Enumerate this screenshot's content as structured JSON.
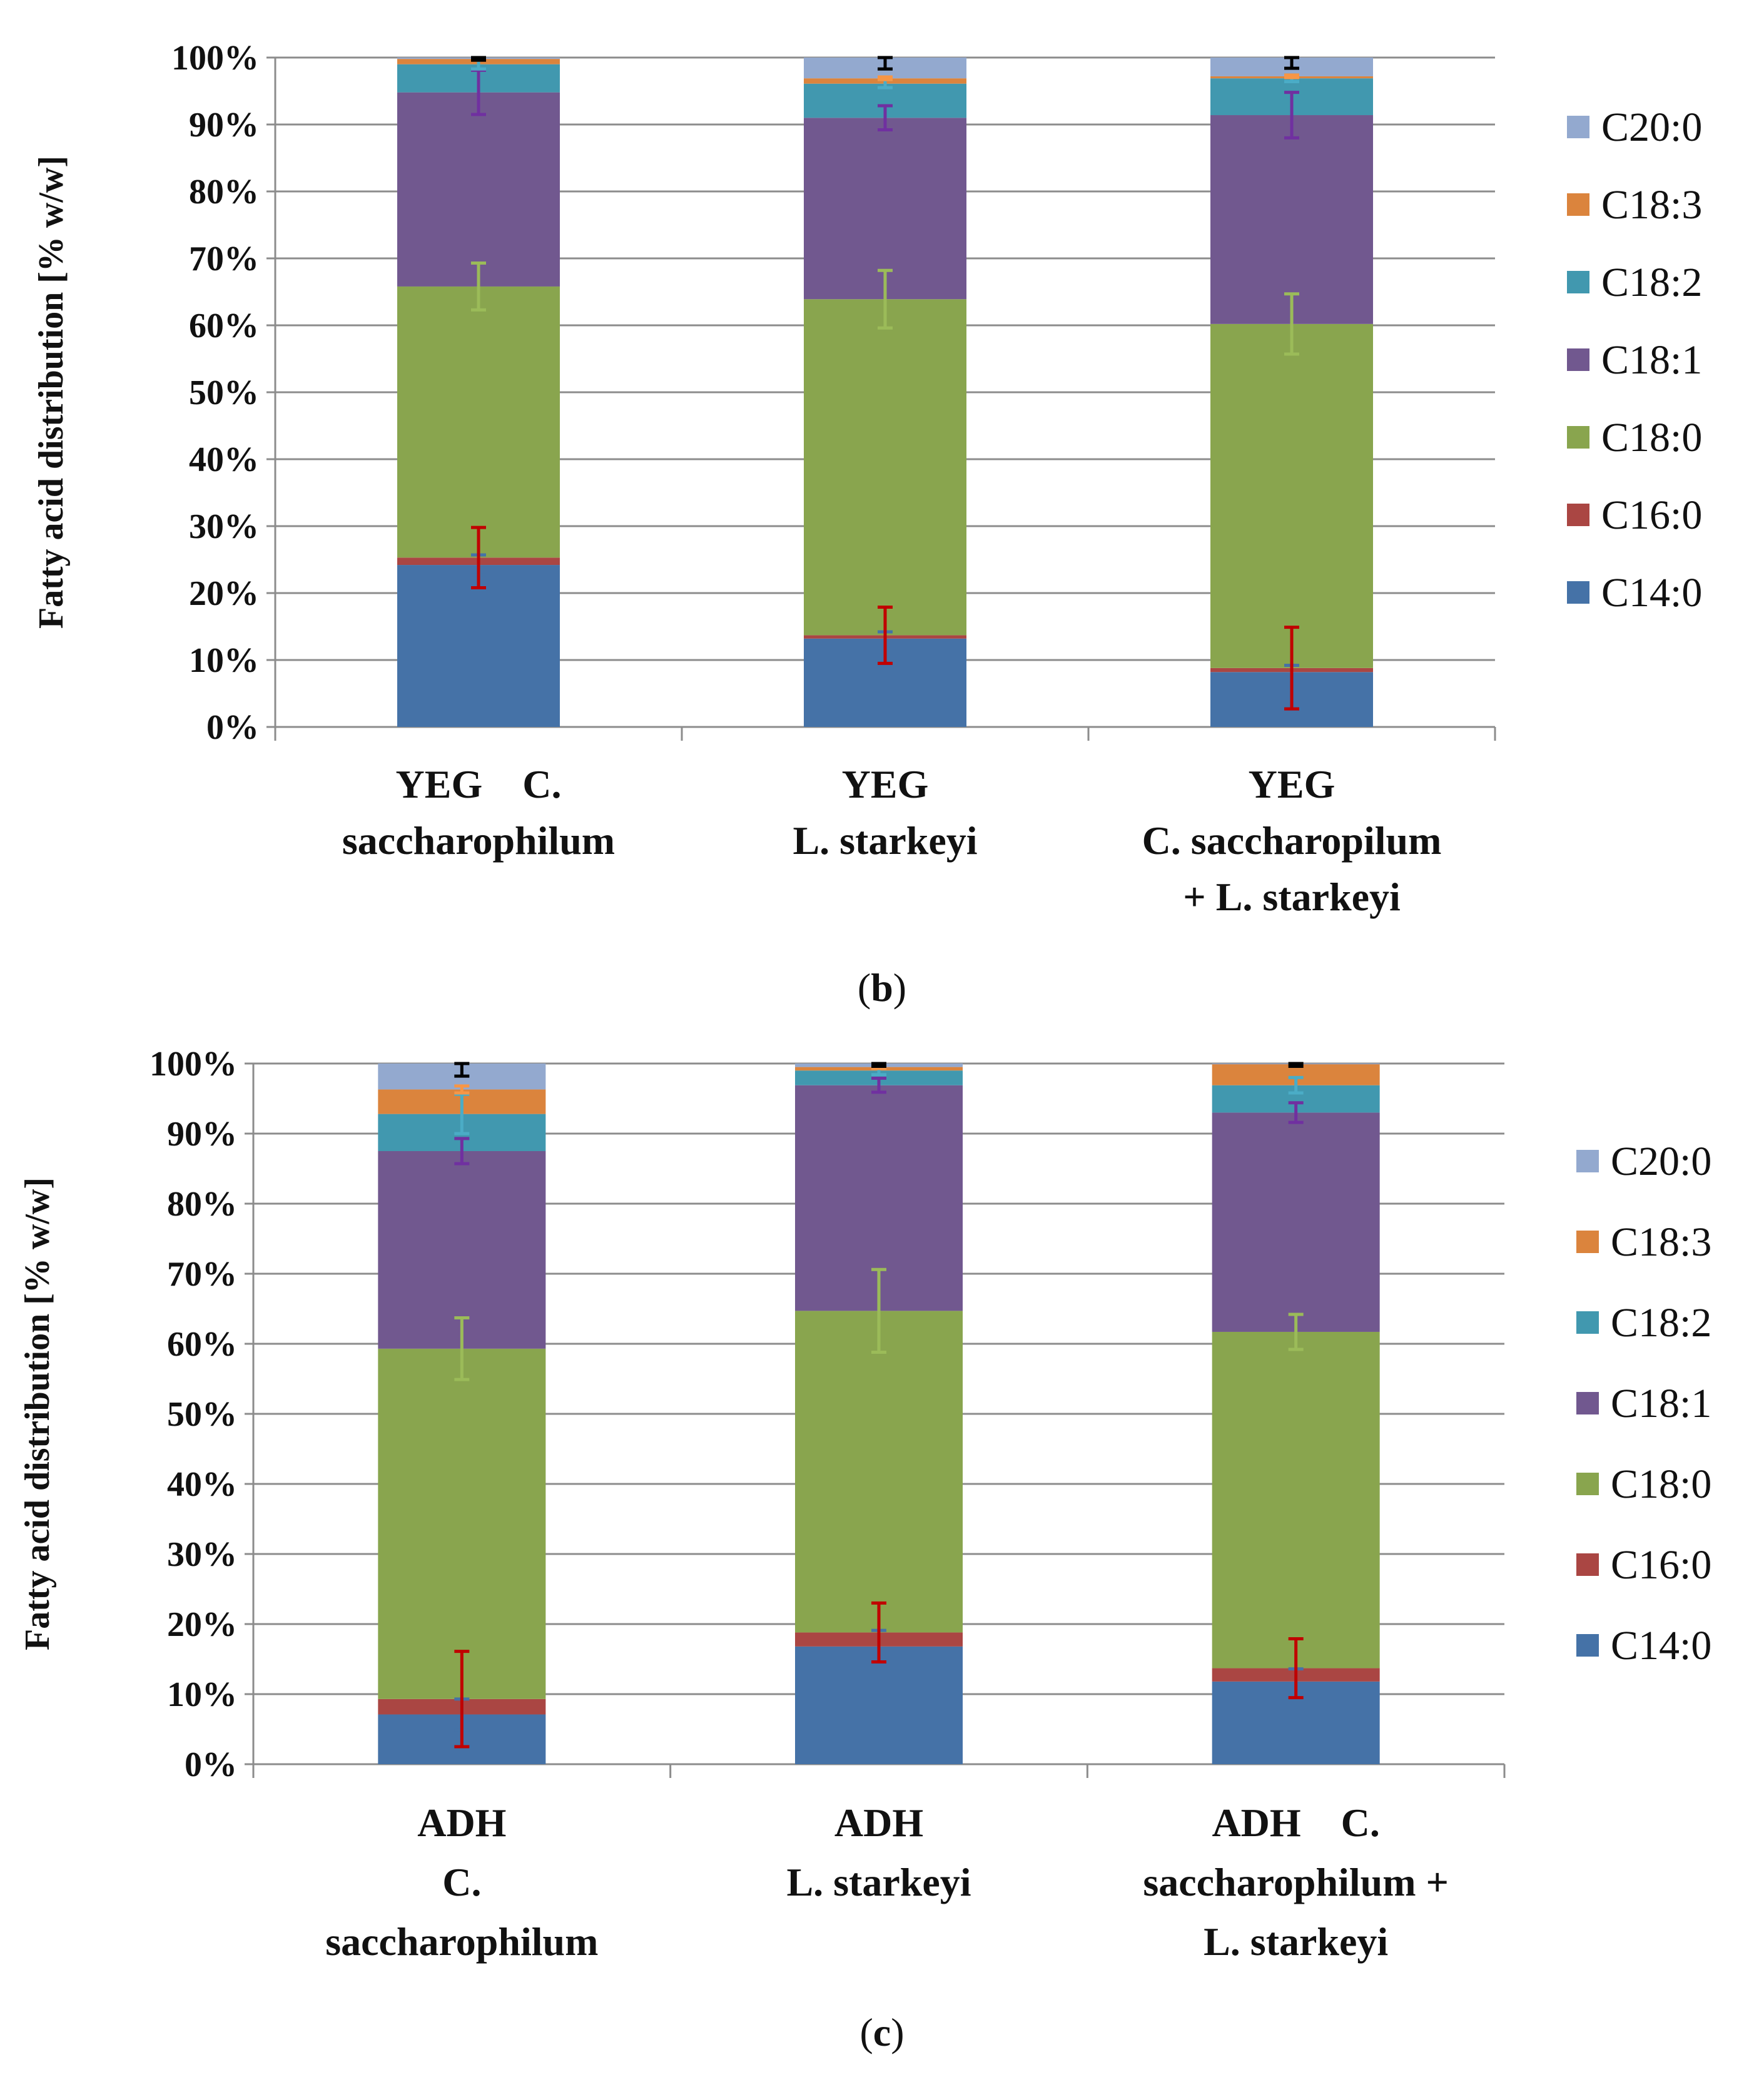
{
  "chart_data": [
    {
      "type": "bar",
      "stacked": true,
      "panel": "b",
      "ylabel": "Fatty acid distribution [% w/w]",
      "ylim": [
        0,
        100
      ],
      "yticks": [
        "0%",
        "10%",
        "20%",
        "30%",
        "40%",
        "50%",
        "60%",
        "70%",
        "80%",
        "90%",
        "100%"
      ],
      "grid": true,
      "legend_position": "right",
      "categories": [
        [
          "YEG    C.",
          "saccharophilum"
        ],
        [
          "YEG",
          "L. starkeyi"
        ],
        [
          "YEG",
          "C. saccharopilum",
          "+ L. starkeyi"
        ]
      ],
      "series": [
        {
          "name": "C14:0",
          "color": "#4572A7",
          "values": [
            24.2,
            13.2,
            8.2
          ],
          "errors": [
            1.5,
            1.0,
            1.0
          ],
          "err_color": "#4572A7"
        },
        {
          "name": "C16:0",
          "color": "#AA4643",
          "values": [
            1.1,
            0.5,
            0.6
          ],
          "errors": [
            4.5,
            4.2,
            6.1
          ],
          "err_color": "#C00000"
        },
        {
          "name": "C18:0",
          "color": "#89A54E",
          "values": [
            40.5,
            50.2,
            51.4
          ],
          "errors": [
            3.5,
            4.3,
            4.5
          ],
          "err_color": "#9BBB59"
        },
        {
          "name": "C18:1",
          "color": "#71588F",
          "values": [
            29.0,
            27.1,
            31.2
          ],
          "errors": [
            3.3,
            1.8,
            3.4
          ],
          "err_color": "#7030A0"
        },
        {
          "name": "C18:2",
          "color": "#4198AF",
          "values": [
            4.2,
            5.1,
            5.5
          ],
          "errors": [
            0.7,
            0.6,
            0.5
          ],
          "err_color": "#4BACC6"
        },
        {
          "name": "C18:3",
          "color": "#DB843D",
          "values": [
            0.8,
            0.8,
            0.3
          ],
          "errors": [
            0.2,
            0.2,
            0.2
          ],
          "err_color": "#F79646"
        },
        {
          "name": "C20:0",
          "color": "#93A9CF",
          "values": [
            0.2,
            3.1,
            2.8
          ],
          "errors": [
            0.4,
            1.7,
            1.6
          ],
          "err_color": "#000000"
        }
      ]
    },
    {
      "type": "bar",
      "stacked": true,
      "panel": "c",
      "ylabel": "Fatty acid distribution [% w/w]",
      "ylim": [
        0,
        100
      ],
      "yticks": [
        "0%",
        "10%",
        "20%",
        "30%",
        "40%",
        "50%",
        "60%",
        "70%",
        "80%",
        "90%",
        "100%"
      ],
      "grid": true,
      "legend_position": "right",
      "categories": [
        [
          "ADH",
          "C.",
          "saccharophilum"
        ],
        [
          "ADH",
          "L. starkeyi"
        ],
        [
          "ADH    C.",
          "saccharophilum +",
          "L. starkeyi"
        ]
      ],
      "series": [
        {
          "name": "C14:0",
          "color": "#4572A7",
          "values": [
            7.1,
            16.8,
            11.8
          ],
          "errors": [
            2.2,
            2.3,
            1.8
          ],
          "err_color": "#4572A7"
        },
        {
          "name": "C16:0",
          "color": "#AA4643",
          "values": [
            2.2,
            2.0,
            1.9
          ],
          "errors": [
            6.8,
            4.2,
            4.2
          ],
          "err_color": "#C00000"
        },
        {
          "name": "C18:0",
          "color": "#89A54E",
          "values": [
            50.0,
            45.9,
            48.0
          ],
          "errors": [
            4.4,
            5.9,
            2.5
          ],
          "err_color": "#9BBB59"
        },
        {
          "name": "C18:1",
          "color": "#71588F",
          "values": [
            28.2,
            32.2,
            31.3
          ],
          "errors": [
            1.8,
            1.0,
            1.4
          ],
          "err_color": "#7030A0"
        },
        {
          "name": "C18:2",
          "color": "#4198AF",
          "values": [
            5.3,
            2.1,
            3.9
          ],
          "errors": [
            2.8,
            0.6,
            1.1
          ],
          "err_color": "#4BACC6"
        },
        {
          "name": "C18:3",
          "color": "#DB843D",
          "values": [
            3.5,
            0.5,
            3.0
          ],
          "errors": [
            0.5,
            0.2,
            0.3
          ],
          "err_color": "#F79646"
        },
        {
          "name": "C20:0",
          "color": "#93A9CF",
          "values": [
            3.7,
            0.5,
            0.1
          ],
          "errors": [
            1.8,
            0.4,
            0.4
          ],
          "err_color": "#000000"
        }
      ]
    }
  ],
  "panel_labels": [
    "b",
    "c"
  ]
}
